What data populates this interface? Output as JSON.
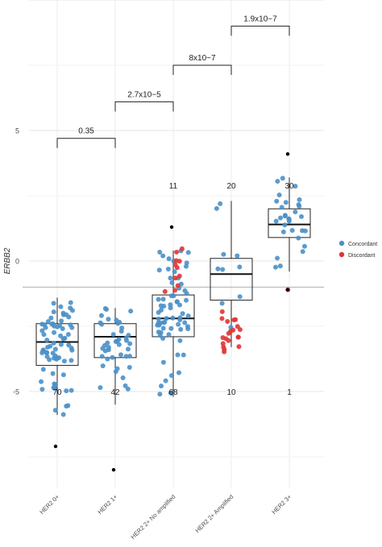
{
  "chart_data": {
    "type": "boxplot",
    "ylabel": "ERBB2",
    "y_ticks": [
      5,
      0,
      -5
    ],
    "ylim": [
      -9.0,
      9.9
    ],
    "categories": [
      "HER2 0+",
      "HER2 1+",
      "HER2 2+ No amplified",
      "HER2 2+ Amplified",
      "HER2 3+"
    ],
    "reference_line_y": -1.0,
    "legend": {
      "position": "right",
      "entries": [
        {
          "label": "Concordant",
          "color": "#4a90c8"
        },
        {
          "label": "Discordant",
          "color": "#e03535"
        }
      ]
    },
    "boxes": [
      {
        "category": "HER2 0+",
        "whisker_low": -5.9,
        "q1": -4.0,
        "median": -3.1,
        "q3": -2.4,
        "whisker_high": -1.4
      },
      {
        "category": "HER2 1+",
        "whisker_low": -5.5,
        "q1": -3.7,
        "median": -2.9,
        "q3": -2.4,
        "whisker_high": -1.8
      },
      {
        "category": "HER2 2+ No amplified",
        "whisker_low": -5.2,
        "q1": -2.9,
        "median": -2.2,
        "q3": -1.3,
        "whisker_high": 0.4
      },
      {
        "category": "HER2 2+ Amplified",
        "whisker_low": -3.3,
        "q1": -1.5,
        "median": -0.5,
        "q3": 0.1,
        "whisker_high": 2.3
      },
      {
        "category": "HER2 3+",
        "whisker_low": -0.4,
        "q1": 0.9,
        "median": 1.4,
        "q3": 2.0,
        "whisker_high": 3.2
      }
    ],
    "outliers": [
      {
        "category": "HER2 0+",
        "y": -7.1
      },
      {
        "category": "HER2 1+",
        "y": -8.0
      },
      {
        "category": "HER2 2+ No amplified",
        "y": 1.3
      },
      {
        "category": "HER2 3+",
        "y": 4.1
      },
      {
        "category": "HER2 3+",
        "y": -1.1
      }
    ],
    "counts": [
      {
        "category": "HER2 0+",
        "concordant": "70",
        "discordant": ""
      },
      {
        "category": "HER2 1+",
        "concordant": "42",
        "discordant": ""
      },
      {
        "category": "HER2 2+ No amplified",
        "concordant": "68",
        "discordant": "11"
      },
      {
        "category": "HER2 2+ Amplified",
        "concordant": "10",
        "discordant": "20"
      },
      {
        "category": "HER2 3+",
        "concordant": "1",
        "discordant": "30"
      }
    ],
    "comparisons": [
      {
        "from": "HER2 0+",
        "to": "HER2 1+",
        "label": "0.35",
        "y": 4.7
      },
      {
        "from": "HER2 1+",
        "to": "HER2 2+ No amplified",
        "label": "2.7x10−5",
        "y": 6.1
      },
      {
        "from": "HER2 2+ No amplified",
        "to": "HER2 2+ Amplified",
        "label": "8x10−7",
        "y": 7.5
      },
      {
        "from": "HER2 2+ Amplified",
        "to": "HER2 3+",
        "label": "1.9x10−7",
        "y": 9.0
      }
    ]
  }
}
